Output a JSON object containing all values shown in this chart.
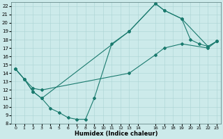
{
  "xlabel": "Humidex (Indice chaleur)",
  "xlim": [
    -0.5,
    23.5
  ],
  "ylim": [
    8,
    22.5
  ],
  "line_color": "#1a7a6e",
  "bg_color": "#cceaea",
  "grid_color": "#aad4d4",
  "line1_x": [
    0,
    1,
    2,
    3,
    4,
    5,
    6,
    7,
    8,
    9,
    11,
    13,
    16,
    17,
    19,
    20,
    21,
    22,
    23
  ],
  "line1_y": [
    14.5,
    13.3,
    11.8,
    11.0,
    9.8,
    9.3,
    8.7,
    8.5,
    8.5,
    11.0,
    17.5,
    19.0,
    22.3,
    21.5,
    20.5,
    18.0,
    17.5,
    17.2,
    17.8
  ],
  "line2_x": [
    0,
    1,
    2,
    3,
    13,
    16,
    17,
    19,
    22,
    23
  ],
  "line2_y": [
    14.5,
    13.3,
    11.8,
    11.0,
    19.0,
    22.3,
    21.5,
    20.5,
    17.2,
    17.8
  ],
  "line3_x": [
    0,
    1,
    2,
    3,
    13,
    16,
    17,
    19,
    22,
    23
  ],
  "line3_y": [
    14.5,
    13.3,
    12.2,
    12.0,
    14.0,
    16.2,
    17.0,
    17.5,
    17.0,
    17.8
  ],
  "yticks": [
    8,
    9,
    10,
    11,
    12,
    13,
    14,
    15,
    16,
    17,
    18,
    19,
    20,
    21,
    22
  ],
  "xtick_positions": [
    0,
    1,
    2,
    3,
    4,
    5,
    6,
    7,
    8,
    9,
    10,
    11,
    12,
    13,
    14,
    16,
    17,
    18,
    19,
    20,
    21,
    22,
    23
  ],
  "xtick_labels": [
    "0",
    "1",
    "2",
    "3",
    "4",
    "5",
    "6",
    "7",
    "8",
    "9",
    "10",
    "11",
    "12",
    "13",
    "14",
    "16",
    "17",
    "18",
    "19",
    "20",
    "21",
    "22",
    "23"
  ],
  "marker": "D",
  "marker_size": 2.0,
  "line_width": 0.8,
  "tick_fontsize": 5,
  "xlabel_fontsize": 6
}
